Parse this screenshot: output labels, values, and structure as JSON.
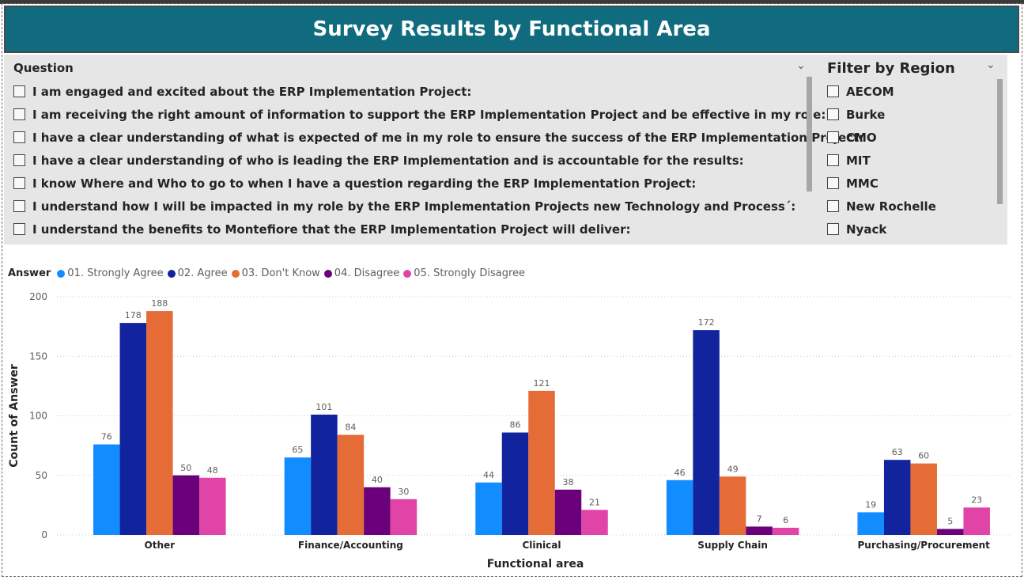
{
  "title": "Survey Results by Functional Area",
  "question_slicer": {
    "header": "Question",
    "items": [
      "I am engaged and excited about the ERP Implementation Project:",
      "I am receiving the right amount of information to support the ERP Implementation Project and be effective in my role:",
      "I have a clear understanding of what is expected of me in my role to ensure the success of the ERP Implementation Project:",
      "I have a clear understanding of who is leading the ERP Implementation and is accountable for the results:",
      "I know Where and Who to go to when I have a question regarding the ERP Implementation Project:",
      "I understand how I will be impacted in my role by the ERP Implementation Projects new Technology and Process´:",
      "I understand the benefits to Montefiore that the ERP Implementation Project will deliver:"
    ]
  },
  "region_slicer": {
    "header": "Filter by Region",
    "items": [
      "AECOM",
      "Burke",
      "CMO",
      "MIT",
      "MMC",
      "New Rochelle",
      "Nyack"
    ]
  },
  "icons": {
    "dropdown": "chevron-down-icon",
    "checkbox": "checkbox-icon"
  },
  "chart_data": {
    "type": "bar",
    "legend_title": "Answer",
    "legend_position": "top-left",
    "categories": [
      "Other",
      "Finance/Accounting",
      "Clinical",
      "Supply Chain",
      "Purchasing/Procurement"
    ],
    "series": [
      {
        "name": "01. Strongly Agree",
        "color": "#118dff",
        "values": [
          76,
          65,
          44,
          46,
          19
        ]
      },
      {
        "name": "02. Agree",
        "color": "#12239e",
        "values": [
          178,
          101,
          86,
          172,
          63
        ]
      },
      {
        "name": "03. Don't Know",
        "color": "#e66c37",
        "values": [
          188,
          84,
          121,
          49,
          60
        ]
      },
      {
        "name": "04. Disagree",
        "color": "#6b007b",
        "values": [
          50,
          40,
          38,
          7,
          5
        ]
      },
      {
        "name": "05. Strongly Disagree",
        "color": "#e044a7",
        "values": [
          48,
          30,
          21,
          6,
          23
        ]
      }
    ],
    "xlabel": "Functional area",
    "ylabel": "Count of Answer",
    "ylim": [
      0,
      200
    ],
    "yticks": [
      0,
      50,
      100,
      150,
      200
    ],
    "grid": true,
    "data_labels": true
  }
}
